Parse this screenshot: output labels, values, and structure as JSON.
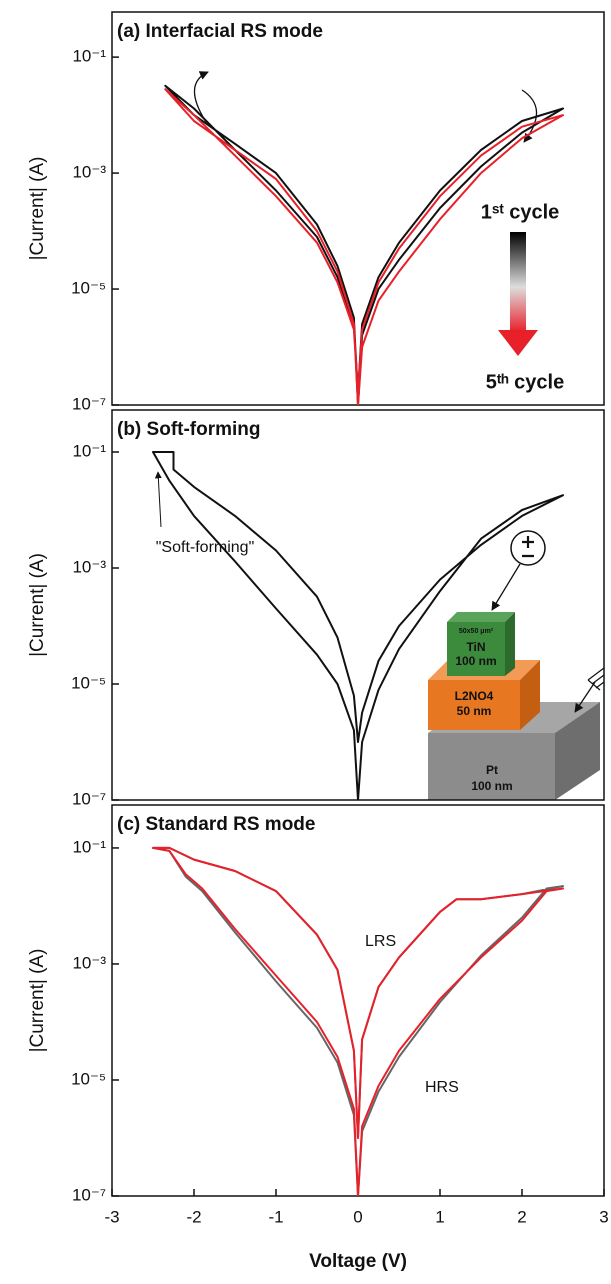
{
  "chart_data": [
    {
      "type": "line",
      "title": "(a) Interfacial RS mode",
      "ylabel": "|Current| (A)",
      "ylog": true,
      "xlim": [
        -3,
        3
      ],
      "ylim": [
        1e-07,
        0.6
      ],
      "yticks": [
        {
          "value": 0.1,
          "label": "10⁻¹"
        },
        {
          "value": 0.001,
          "label": "10⁻³"
        },
        {
          "value": 1e-05,
          "label": "10⁻⁵"
        },
        {
          "value": 1e-07,
          "label": "10⁻⁷"
        }
      ],
      "series": [
        {
          "name": "1ˢᵗ cycle",
          "color": "#111111",
          "x": [
            0,
            0.05,
            0.25,
            0.5,
            1,
            1.5,
            2,
            2.5,
            2,
            1.5,
            1,
            0.5,
            0.25,
            0.05,
            0,
            -0.05,
            -0.25,
            -0.5,
            -1,
            -1.5,
            -2,
            -2.35,
            -2,
            -1.5,
            -1,
            -0.5,
            -0.25,
            -0.05,
            0
          ],
          "values": [
            1e-07,
            1.6e-06,
            1e-05,
            3.2e-05,
            0.00025,
            0.0013,
            0.005,
            0.013,
            0.0079,
            0.0025,
            0.0005,
            6.3e-05,
            1.6e-05,
            2.5e-06,
            1.6e-07,
            2.5e-06,
            1.6e-05,
            7.9e-05,
            0.0005,
            0.0025,
            0.013,
            0.032,
            0.01,
            0.0032,
            0.001,
            0.00013,
            2.5e-05,
            3.2e-06,
            1e-07
          ]
        },
        {
          "name": "5ᵗʰ cycle",
          "color": "#e8202a",
          "x": [
            0,
            0.05,
            0.25,
            0.5,
            1,
            1.5,
            2,
            2.5,
            2,
            1.5,
            1,
            0.5,
            0.25,
            0.05,
            0,
            -0.05,
            -0.25,
            -0.5,
            -1,
            -1.5,
            -2,
            -2.35,
            -2,
            -1.5,
            -1,
            -0.5,
            -0.25,
            -0.05,
            0
          ],
          "values": [
            1e-07,
            1e-06,
            6.3e-06,
            2e-05,
            0.00016,
            0.001,
            0.004,
            0.01,
            0.0063,
            0.002,
            0.0004,
            5e-05,
            1.3e-05,
            2e-06,
            1.6e-07,
            2e-06,
            1.3e-05,
            6.3e-05,
            0.0004,
            0.002,
            0.01,
            0.028,
            0.0079,
            0.0025,
            0.00079,
            0.0001,
            2e-05,
            2.5e-06,
            1e-07
          ]
        }
      ]
    },
    {
      "type": "line",
      "title": "(b) Soft-forming",
      "ylabel": "|Current| (A)",
      "ylog": true,
      "xlim": [
        -3,
        3
      ],
      "ylim": [
        1e-07,
        0.53
      ],
      "yticks": [
        {
          "value": 0.1,
          "label": "10⁻¹"
        },
        {
          "value": 0.001,
          "label": "10⁻³"
        },
        {
          "value": 1e-05,
          "label": "10⁻⁵"
        },
        {
          "value": 1e-07,
          "label": "10⁻⁷"
        }
      ],
      "annotations": [
        {
          "text": "\"Soft-forming\"",
          "color": "#111111"
        }
      ],
      "inset_labels": [
        "50x50 μm²",
        "TiN",
        "100 nm",
        "L2NO4",
        "50 nm",
        "Pt",
        "100 nm"
      ],
      "series": [
        {
          "color": "#111111",
          "x": [
            0,
            -0.05,
            -0.25,
            -0.5,
            -1,
            -1.5,
            -2,
            -2.3,
            -2.5,
            -2.25,
            -2.25,
            -2,
            -1.5,
            -1,
            -0.5,
            -0.25,
            -0.05,
            0,
            0.05,
            0.25,
            0.5,
            1,
            1.5,
            2,
            2.5,
            2,
            1.5,
            1,
            0.5,
            0.25,
            0.05,
            0
          ],
          "values": [
            1e-07,
            1.6e-06,
            1e-05,
            3.2e-05,
            0.0002,
            0.0013,
            0.0079,
            0.032,
            0.1,
            0.1,
            0.05,
            0.025,
            0.0079,
            0.002,
            0.00032,
            6.3e-05,
            6.3e-06,
            1e-06,
            3.2e-06,
            2.5e-05,
            0.0001,
            0.00063,
            0.0025,
            0.0079,
            0.018,
            0.01,
            0.0032,
            0.0004,
            4e-05,
            7.9e-06,
            1e-06,
            1e-07
          ]
        }
      ]
    },
    {
      "type": "line",
      "title": "(c) Standard RS mode",
      "ylabel": "|Current| (A)",
      "xlabel": "Voltage (V)",
      "ylog": true,
      "xlim": [
        -3,
        3
      ],
      "ylim": [
        1e-07,
        0.55
      ],
      "xticks": [
        -3,
        -2,
        -1,
        0,
        1,
        2,
        3
      ],
      "yticks": [
        {
          "value": 0.1,
          "label": "10⁻¹"
        },
        {
          "value": 0.001,
          "label": "10⁻³"
        },
        {
          "value": 1e-05,
          "label": "10⁻⁵"
        },
        {
          "value": 1e-07,
          "label": "10⁻⁷"
        }
      ],
      "annotations": [
        {
          "text": "LRS",
          "color": "#4b5aa8"
        },
        {
          "text": "HRS",
          "color": "#e8202a"
        }
      ],
      "series": [
        {
          "color": "#666666",
          "x": [
            0,
            -0.05,
            -0.25,
            -0.5,
            -1,
            -1.5,
            -1.9,
            -2.1,
            -2.3,
            -2.5,
            -2.3,
            -2,
            -1.5,
            -1,
            -0.5,
            -0.25,
            -0.05,
            0,
            0.05,
            0.25,
            0.5,
            1,
            1.2,
            1.5,
            2,
            2.5,
            2.3,
            2,
            1.5,
            1,
            0.5,
            0.25,
            0.05,
            0
          ],
          "values": [
            1e-07,
            2.5e-06,
            2e-05,
            7.9e-05,
            0.0005,
            0.0035,
            0.018,
            0.032,
            0.089,
            0.1,
            0.1,
            0.063,
            0.04,
            0.018,
            0.0032,
            0.00079,
            3.2e-05,
            1e-06,
            5e-05,
            0.0004,
            0.0013,
            0.0079,
            0.013,
            0.013,
            0.016,
            0.022,
            0.02,
            0.0063,
            0.0014,
            0.00022,
            2.5e-05,
            6.3e-06,
            1.3e-06,
            1e-07
          ]
        },
        {
          "color": "#e8202a",
          "x": [
            0,
            -0.05,
            -0.25,
            -0.5,
            -1,
            -1.5,
            -1.9,
            -2.1,
            -2.3,
            -2.5,
            -2.3,
            -2,
            -1.5,
            -1,
            -0.5,
            -0.25,
            -0.05,
            0,
            0.05,
            0.25,
            0.5,
            1,
            1.2,
            1.5,
            2,
            2.5,
            2.3,
            2,
            1.5,
            1,
            0.5,
            0.25,
            0.05,
            0
          ],
          "values": [
            1e-07,
            3.2e-06,
            2.5e-05,
            0.0001,
            0.00063,
            0.004,
            0.02,
            0.035,
            0.089,
            0.1,
            0.1,
            0.063,
            0.04,
            0.018,
            0.0032,
            0.00079,
            3.2e-05,
            1e-06,
            5e-05,
            0.0004,
            0.0013,
            0.0079,
            0.013,
            0.013,
            0.016,
            0.02,
            0.018,
            0.0056,
            0.0013,
            0.00025,
            3.2e-05,
            7.9e-06,
            1.6e-06,
            1e-07
          ]
        }
      ]
    }
  ]
}
